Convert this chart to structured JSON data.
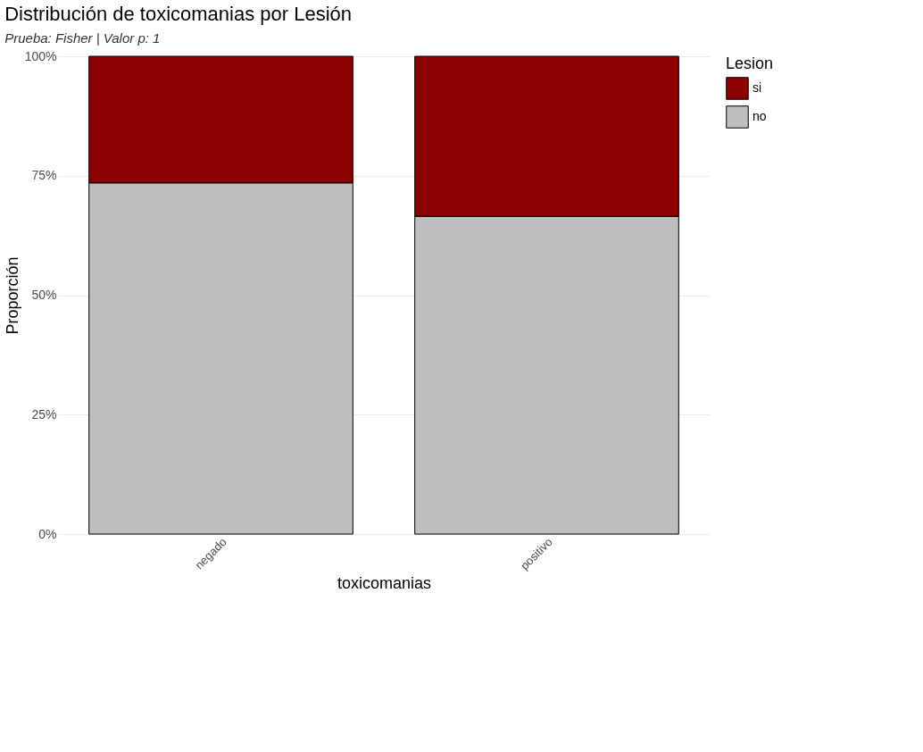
{
  "chart_data": {
    "type": "bar",
    "title": "Distribución de toxicomanias por Lesión",
    "subtitle": "Prueba: Fisher | Valor p: 1",
    "xlabel": "toxicomanias",
    "ylabel": "Proporción",
    "legend_title": "Lesion",
    "categories": [
      "negado",
      "positivo"
    ],
    "stacked": true,
    "series": [
      {
        "name": "no",
        "color": "#bebebe",
        "values": [
          73.5,
          66.5
        ]
      },
      {
        "name": "si",
        "color": "#8b0000",
        "values": [
          26.5,
          33.5
        ]
      }
    ],
    "ylim": [
      0,
      100
    ],
    "yticks": [
      {
        "value": 0,
        "label": "0%"
      },
      {
        "value": 25,
        "label": "25%"
      },
      {
        "value": 50,
        "label": "50%"
      },
      {
        "value": 75,
        "label": "75%"
      },
      {
        "value": 100,
        "label": "100%"
      }
    ],
    "grid": true,
    "legend": "right"
  }
}
